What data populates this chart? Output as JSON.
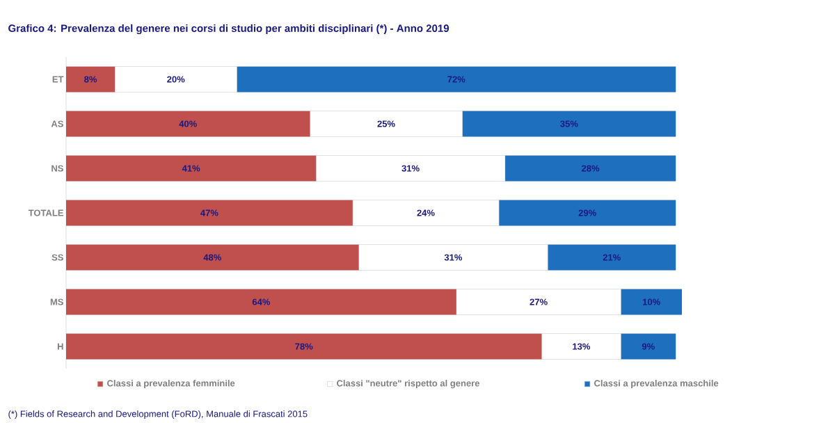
{
  "chart_data": {
    "type": "bar",
    "orientation": "horizontal",
    "stacked": true,
    "title": "Grafico 4: Prevalenza del genere nei corsi di studio per ambiti disciplinari (*) - Anno 2019",
    "categories": [
      "ET",
      "AS",
      "NS",
      "TOTALE",
      "SS",
      "MS",
      "H"
    ],
    "series": [
      {
        "name": "Classi a prevalenza femminile",
        "color": "#c0504d",
        "values": [
          8,
          40,
          41,
          47,
          48,
          64,
          78
        ],
        "value_labels": [
          "8%",
          "40%",
          "41%",
          "47%",
          "48%",
          "64%",
          "78%"
        ]
      },
      {
        "name": "Classi \"neutre\" rispetto al genere",
        "color": "#ffffff",
        "values": [
          20,
          25,
          31,
          24,
          31,
          27,
          13
        ],
        "value_labels": [
          "20%",
          "25%",
          "31%",
          "24%",
          "31%",
          "27%",
          "13%"
        ]
      },
      {
        "name": "Classi a prevalenza maschile",
        "color": "#1f6fbf",
        "values": [
          72,
          35,
          28,
          29,
          21,
          10,
          9
        ],
        "value_labels": [
          "72%",
          "35%",
          "28%",
          "29%",
          "21%",
          "10%",
          "9%"
        ]
      }
    ],
    "tick_labels": "y",
    "legend": "bottom",
    "annotations": [
      "(*) Fields of Research and Development (FoRD), Manuale di Frascati 2015"
    ]
  }
}
